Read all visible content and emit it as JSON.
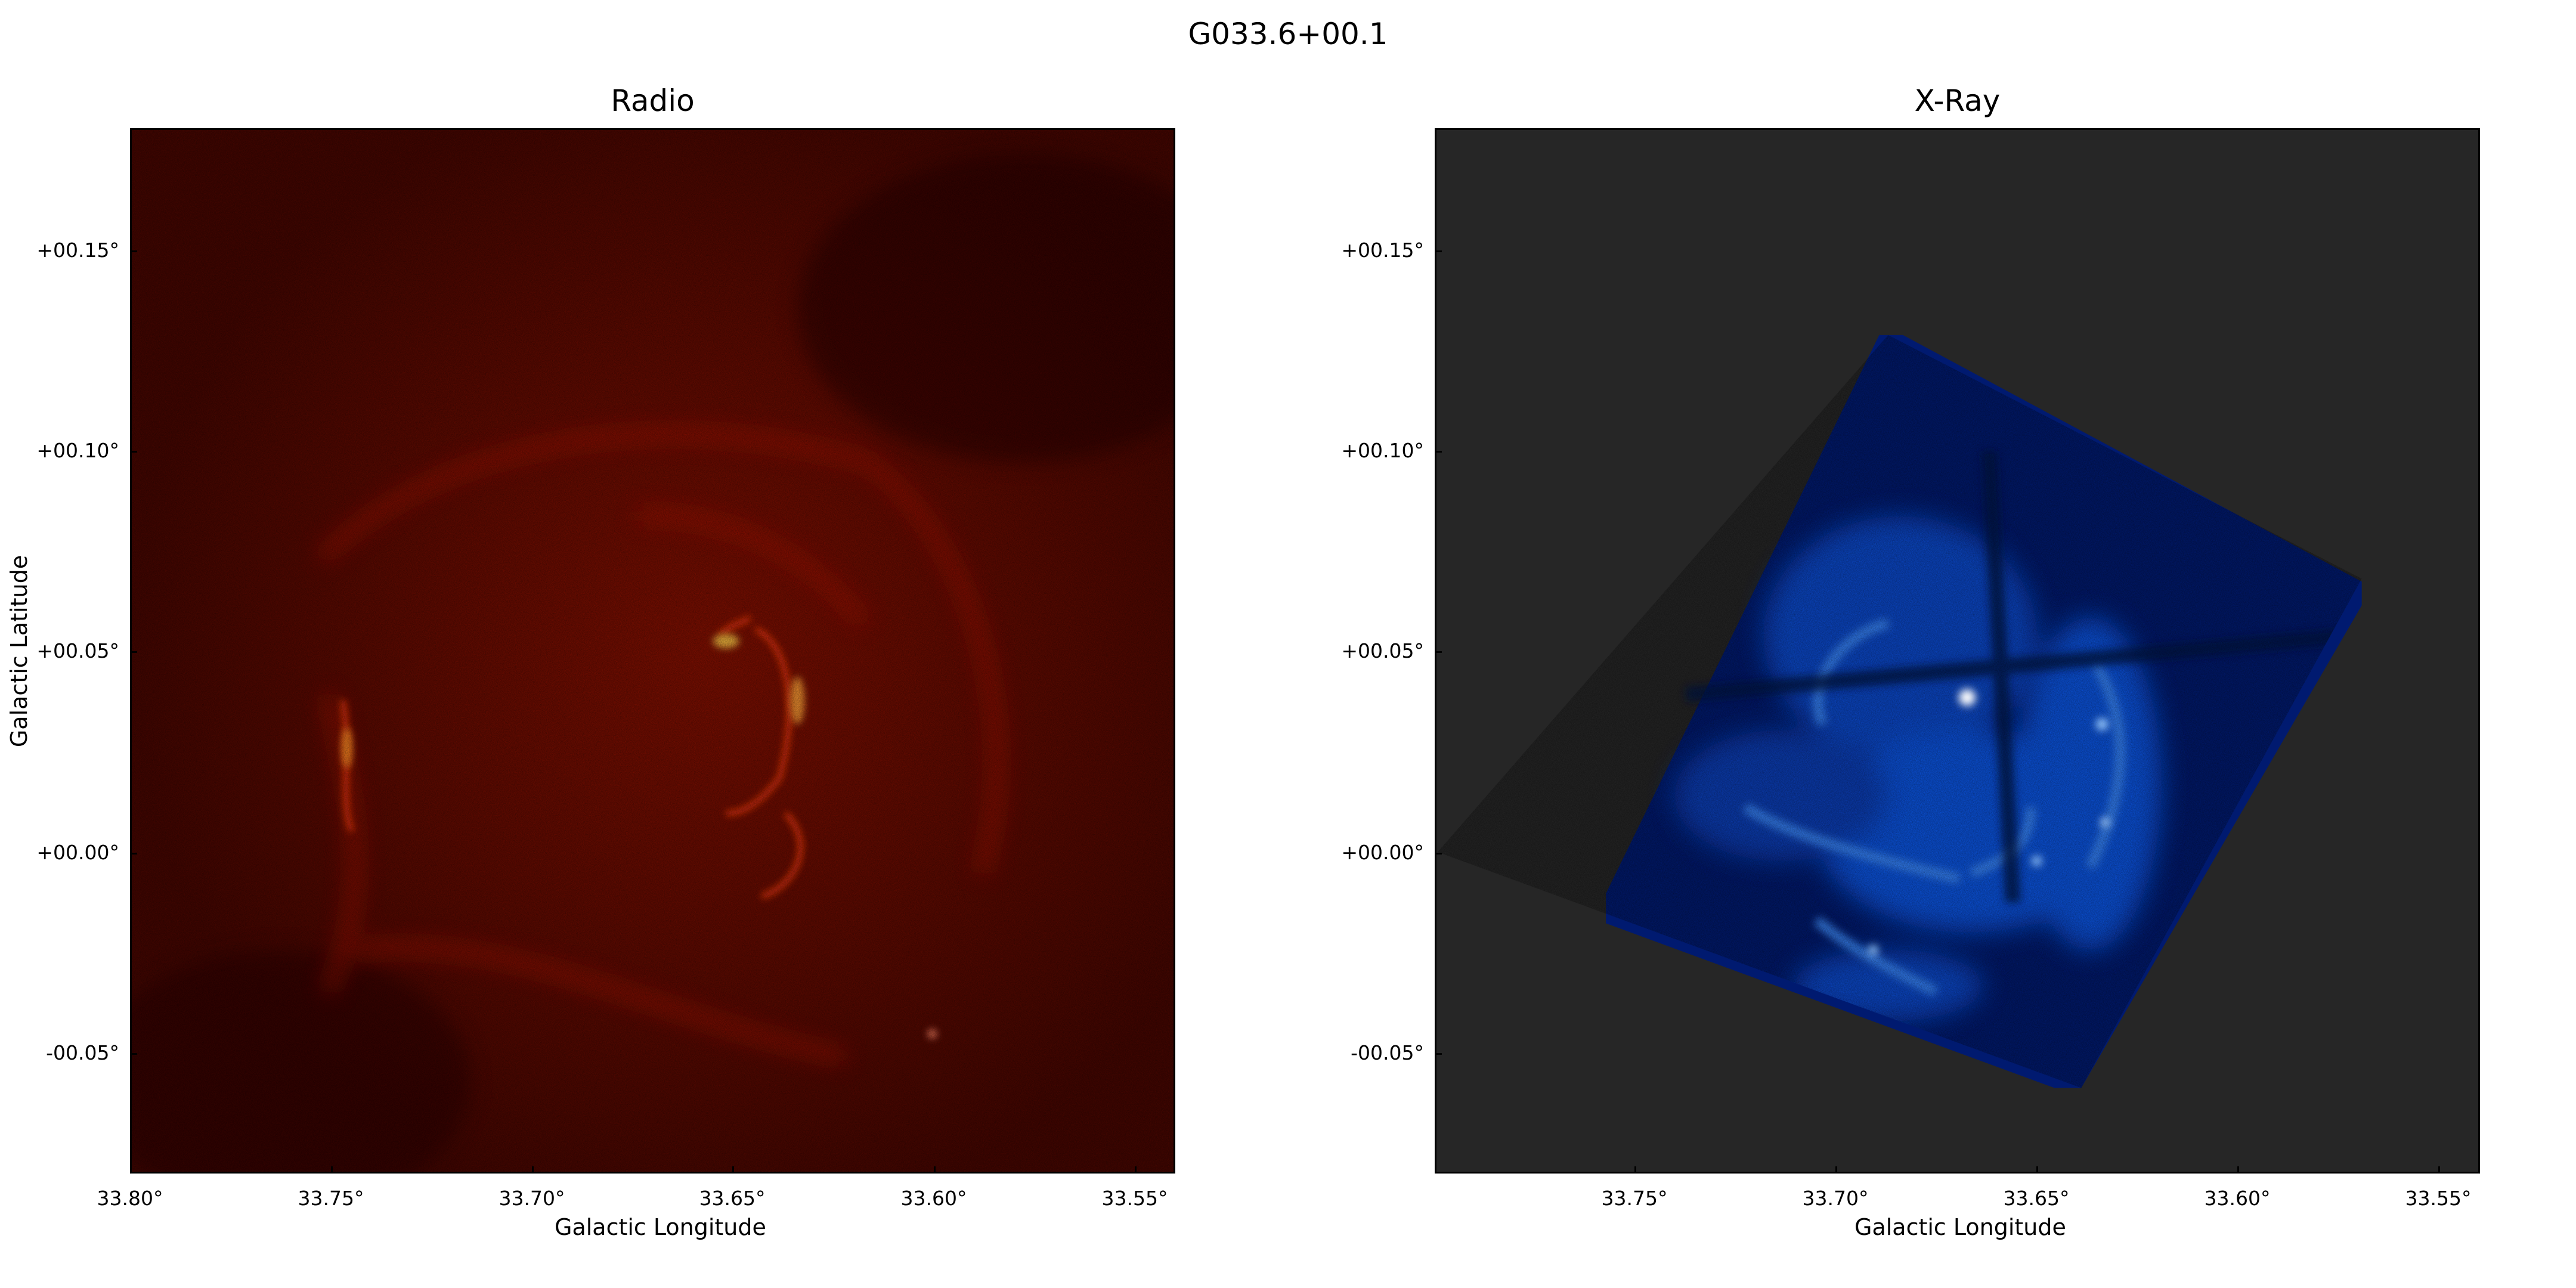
{
  "figure": {
    "title": "G033.6+00.1"
  },
  "radio_panel": {
    "title": "Radio",
    "xlabel": "Galactic Longitude",
    "ylabel": "Galactic Latitude",
    "xticks": [
      "33.80°",
      "33.75°",
      "33.70°",
      "33.65°",
      "33.60°",
      "33.55°"
    ],
    "yticks": [
      "+00.15°",
      "+00.10°",
      "+00.05°",
      "+00.00°",
      "-00.05°"
    ],
    "colormap": {
      "background": "#4a0600",
      "mid": "#a81400",
      "bright": "#ff4010",
      "peak": "#ffd060"
    }
  },
  "xray_panel": {
    "title": "X-Ray",
    "xlabel": "Galactic Longitude",
    "xticks": [
      "33.75°",
      "33.70°",
      "33.65°",
      "33.60°",
      "33.55°"
    ],
    "yticks": [
      "+00.15°",
      "+00.10°",
      "+00.05°",
      "+00.00°",
      "-00.05°"
    ],
    "colormap": {
      "no_data": "#262626",
      "background": "#001a70",
      "mid": "#0a5cf0",
      "bright": "#60b0ff",
      "peak": "#ffffff"
    }
  }
}
